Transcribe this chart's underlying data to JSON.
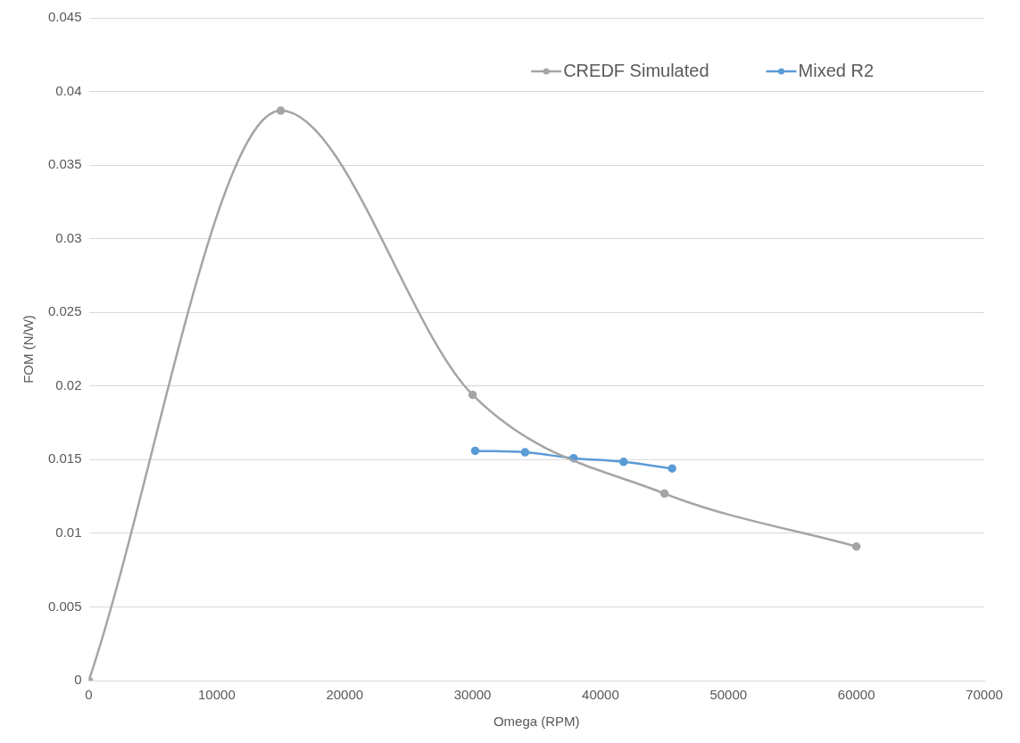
{
  "chart_data": {
    "type": "line",
    "xlabel": "Omega (RPM)",
    "ylabel": "FOM (N/W)",
    "xlim": [
      0,
      70000
    ],
    "xticks": [
      0,
      10000,
      20000,
      30000,
      40000,
      50000,
      60000,
      70000
    ],
    "ylim": [
      0,
      0.045
    ],
    "yticks": [
      0,
      0.005,
      0.01,
      0.015,
      0.02,
      0.025,
      0.03,
      0.035,
      0.04,
      0.045
    ],
    "grid": "y",
    "legend": "top right",
    "marker": "circle",
    "line_style": "solid",
    "series": [
      {
        "name": "CREDF Simulated",
        "color": "#a5a5a5",
        "x": [
          0,
          15000,
          30000,
          45000,
          60000
        ],
        "values": [
          0,
          0.0387,
          0.0194,
          0.0127,
          0.0091
        ]
      },
      {
        "name": "Mixed R2",
        "color": "#5b9bd5",
        "x": [
          30200,
          34100,
          37900,
          41800,
          45600
        ],
        "values": [
          0.0156,
          0.0155,
          0.0151,
          0.01485,
          0.0144
        ]
      }
    ]
  }
}
